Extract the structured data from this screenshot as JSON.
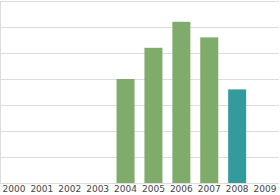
{
  "chart_data": {
    "type": "bar",
    "categories": [
      "2000",
      "2001",
      "2002",
      "2003",
      "2004",
      "2005",
      "2006",
      "2007",
      "2008",
      "2009"
    ],
    "values": [
      null,
      null,
      null,
      null,
      4.0,
      5.2,
      6.2,
      5.6,
      3.6,
      null
    ],
    "colors": [
      "#7fac6a",
      "#7fac6a",
      "#7fac6a",
      "#7fac6a",
      "#7fac6a",
      "#7fac6a",
      "#7fac6a",
      "#7fac6a",
      "#339b9b",
      "#7fac6a"
    ],
    "ylim": [
      0,
      7
    ],
    "yticks": [
      0,
      1,
      2,
      3,
      4,
      5,
      6,
      7
    ],
    "grid": true,
    "tick_labels": "x"
  }
}
